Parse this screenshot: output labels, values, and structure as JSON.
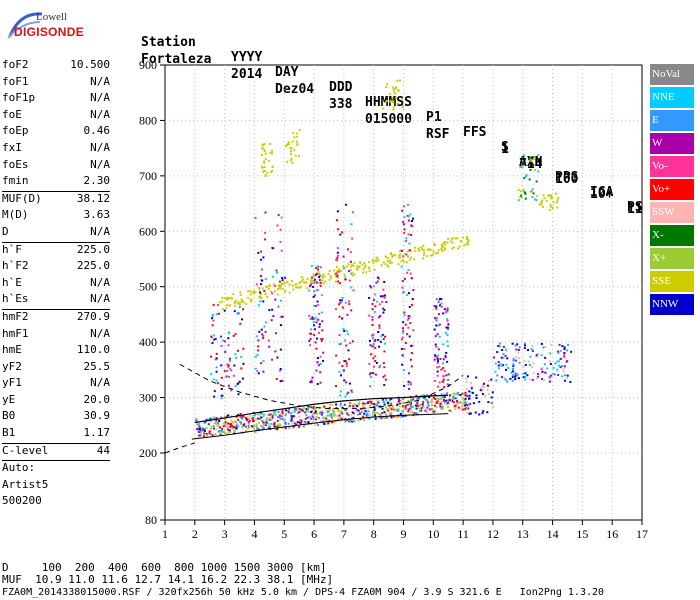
{
  "logo": {
    "line1": "Lowell",
    "line2": "DIGISONDE"
  },
  "header": {
    "labels": [
      "Station",
      "YYYY",
      "DAY",
      "DDD",
      "HHMMSS",
      "P1",
      "FFS",
      "S",
      "AXN",
      "PPS",
      "IGA",
      "PS"
    ],
    "values": [
      "Fortaleza",
      "2014",
      "Dez04",
      "338",
      "015000",
      "RSF",
      "1",
      "714",
      "100",
      "10+",
      "11"
    ]
  },
  "params": [
    {
      "k": "foF2",
      "v": "10.500"
    },
    {
      "k": "foF1",
      "v": "N/A"
    },
    {
      "k": "foF1p",
      "v": "N/A"
    },
    {
      "k": "foE",
      "v": "N/A"
    },
    {
      "k": "foEp",
      "v": "0.46"
    },
    {
      "k": "fxI",
      "v": "N/A"
    },
    {
      "k": "foEs",
      "v": "N/A"
    },
    {
      "k": "fmin",
      "v": "2.30"
    },
    {
      "k": "MUF(D)",
      "v": "38.12",
      "sep": true
    },
    {
      "k": "M(D)",
      "v": "3.63"
    },
    {
      "k": "D",
      "v": "N/A"
    },
    {
      "k": "h`F",
      "v": "225.0",
      "sep": true
    },
    {
      "k": "h`F2",
      "v": "225.0"
    },
    {
      "k": "h`E",
      "v": "N/A"
    },
    {
      "k": "h`Es",
      "v": "N/A"
    },
    {
      "k": "hmF2",
      "v": "270.9",
      "sep": true
    },
    {
      "k": "hmF1",
      "v": "N/A"
    },
    {
      "k": "hmE",
      "v": "110.0"
    },
    {
      "k": "yF2",
      "v": "25.5"
    },
    {
      "k": "yF1",
      "v": "N/A"
    },
    {
      "k": "yE",
      "v": "20.0"
    },
    {
      "k": "B0",
      "v": "30.9"
    },
    {
      "k": "B1",
      "v": "1.17"
    },
    {
      "k": "C-level",
      "v": "44",
      "sep": true
    },
    {
      "k": "Auto:",
      "v": "",
      "sep": true
    },
    {
      "k": "Artist5",
      "v": ""
    },
    {
      "k": "500200",
      "v": ""
    }
  ],
  "legend": [
    {
      "label": "NoVal",
      "color": "#888888"
    },
    {
      "label": "NNE",
      "color": "#00ccff"
    },
    {
      "label": "E",
      "color": "#3399ff"
    },
    {
      "label": "W",
      "color": "#aa00aa"
    },
    {
      "label": "Vo-",
      "color": "#ff3399"
    },
    {
      "label": "Vo+",
      "color": "#ff0000"
    },
    {
      "label": "SSW",
      "color": "#ffb3b3"
    },
    {
      "label": "X-",
      "color": "#007700"
    },
    {
      "label": "X+",
      "color": "#99cc33"
    },
    {
      "label": "SSE",
      "color": "#cccc00"
    },
    {
      "label": "NNW",
      "color": "#0000cc"
    }
  ],
  "footer": {
    "line1": "D     100  200  400  600  800 1000 1500 3000 [km]",
    "line2": "MUF  10.9 11.0 11.6 12.7 14.1 16.2 22.3 38.1 [MHz]",
    "line3": "FZA0M_2014338015000.RSF / 320fx256h 50 kHz 5.0 km / DPS-4 FZA0M 904 / 3.9 S 321.6 E   Ion2Png 1.3.20"
  },
  "chart_data": {
    "type": "scatter",
    "xlim": [
      1,
      17
    ],
    "ylim": [
      80,
      900
    ],
    "xticks": [
      "1",
      "2",
      "3",
      "4",
      "5",
      "6",
      "7",
      "8",
      "9",
      "10",
      "11",
      "12",
      "13",
      "14",
      "15",
      "16",
      "17"
    ],
    "yticks": [
      "80",
      "200",
      "300",
      "400",
      "500",
      "600",
      "700",
      "800",
      "900"
    ],
    "grid": true,
    "profile_curve": {
      "f": [
        1.9,
        3,
        4,
        5,
        6,
        7,
        8,
        9,
        10,
        10.5
      ],
      "h": [
        225,
        232,
        240,
        247,
        254,
        260,
        265,
        268,
        270,
        271
      ]
    },
    "trace_curve": {
      "f": [
        2,
        3,
        4,
        5,
        6,
        7,
        8,
        9,
        10,
        10.5
      ],
      "h": [
        255,
        263,
        272,
        280,
        288,
        294,
        298,
        300,
        303,
        304
      ]
    },
    "dashed_curve": {
      "f": [
        1.5,
        2.5,
        3.5,
        4.5,
        5.5,
        6.5,
        7.5,
        8.5,
        9.5,
        10.5,
        11
      ],
      "h": [
        360,
        330,
        310,
        295,
        285,
        280,
        280,
        285,
        295,
        320,
        340
      ]
    },
    "dashed_low": {
      "f": [
        1.0,
        1.5,
        2.0
      ],
      "h": [
        200,
        210,
        218
      ]
    }
  }
}
